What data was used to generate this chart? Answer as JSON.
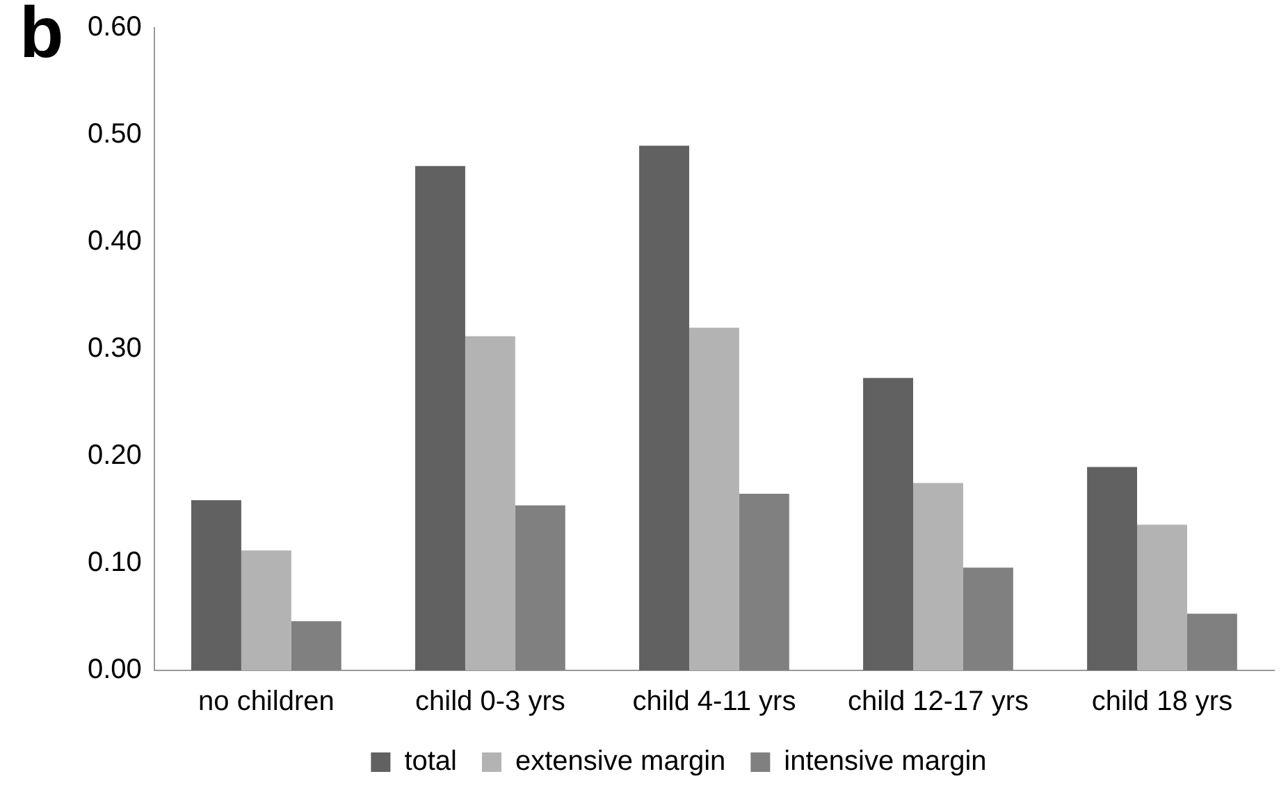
{
  "chart_data": {
    "type": "bar",
    "categories": [
      "no children",
      "child 0-3 yrs",
      "child 4-11 yrs",
      "child 12-17 yrs",
      "child 18 yrs"
    ],
    "series": [
      {
        "name": "total",
        "color": "#616161",
        "values": [
          0.159,
          0.471,
          0.49,
          0.273,
          0.19
        ]
      },
      {
        "name": "extensive margin",
        "color": "#b3b3b3",
        "values": [
          0.112,
          0.312,
          0.32,
          0.175,
          0.136
        ]
      },
      {
        "name": "intensive margin",
        "color": "#808080",
        "values": [
          0.046,
          0.154,
          0.165,
          0.096,
          0.053
        ]
      }
    ],
    "ylim": [
      0,
      0.6
    ],
    "yticks": [
      {
        "value": 0,
        "label": "0.00"
      },
      {
        "value": 0.1,
        "label": "0.10"
      },
      {
        "value": 0.2,
        "label": "0.20"
      },
      {
        "value": 0.3,
        "label": "0.30"
      },
      {
        "value": 0.4,
        "label": "0.40"
      },
      {
        "value": 0.5,
        "label": "0.50"
      },
      {
        "value": 0.6,
        "label": "0.60"
      }
    ],
    "grid": false,
    "legend": "bottom",
    "annotations": [
      "b"
    ]
  }
}
